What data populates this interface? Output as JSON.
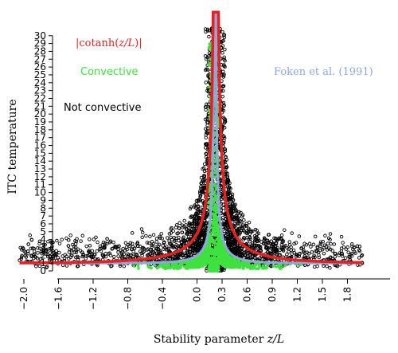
{
  "chart_data": {
    "type": "scatter",
    "ylabel": "ITC temperature",
    "xlabel_prefix": "Stability parameter ",
    "xlabel_var": "z/L",
    "x_ticks": [
      "−2.0",
      "−1.6",
      "−1.2",
      "−0.8",
      "−0.4",
      "0.0",
      "0.3",
      "0.6",
      "0.9",
      "1.2",
      "1.5",
      "1.8"
    ],
    "y_ticks": [
      "0",
      "1",
      "2",
      "3",
      "4",
      "5",
      "6",
      "7",
      "8",
      "9",
      "10",
      "11",
      "12",
      "13",
      "14",
      "15",
      "16",
      "17",
      "18",
      "19",
      "20",
      "21",
      "22",
      "23",
      "24",
      "25",
      "26",
      "27",
      "28",
      "29",
      "30"
    ],
    "y_range": [
      0,
      31.5
    ],
    "x_range": [
      -2.05,
      1.98
    ],
    "grid": false,
    "legend": [
      {
        "label": "|cotanh(z/L)|",
        "color": "#e8201f",
        "part": "curve"
      },
      {
        "label": "Convective",
        "color": "#3fe23f",
        "part": "points"
      },
      {
        "label": "Not convective",
        "color": "#000000",
        "part": "points"
      },
      {
        "label": "Foken et al. (1991)",
        "color": "#8fa7dc",
        "part": "curve"
      }
    ],
    "series": [
      {
        "name": "|cotanh(z/L)|",
        "kind": "line",
        "color": "#e8201f",
        "formula": "|cotanh(x)|"
      },
      {
        "name": "Foken et al. (1991)",
        "kind": "line",
        "color": "#8fa7dc",
        "formula": "0.95*|x|^-1/3 (x<0), 0.2 (x>0)"
      },
      {
        "name": "Not convective",
        "kind": "points",
        "color": "#000000",
        "count": 2600
      },
      {
        "name": "Convective",
        "kind": "points",
        "color": "#3fe23f",
        "count": 1700
      }
    ]
  },
  "legend_text": {
    "cotanh_open": "|cotanh(",
    "cotanh_var": "z/L",
    "cotanh_close": ")|",
    "convective": "Convective",
    "not_convective": "Not convective",
    "foken": "Foken et al. (1991)"
  }
}
